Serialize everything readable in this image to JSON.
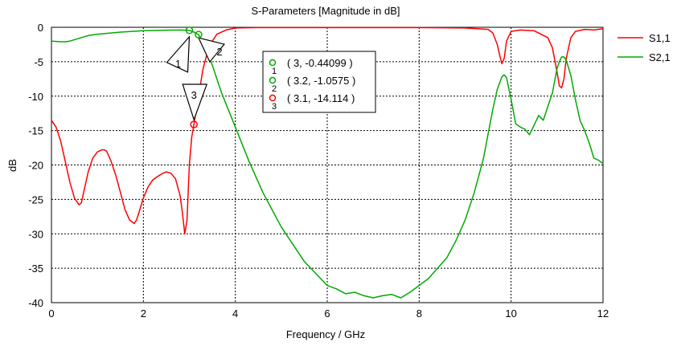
{
  "chart_data": {
    "type": "line",
    "title": "S-Parameters [Magnitude in dB]",
    "xlabel": "Frequency / GHz",
    "ylabel": "dB",
    "xlim": [
      0,
      12
    ],
    "ylim": [
      -40,
      0
    ],
    "xticks": [
      "0",
      "2",
      "4",
      "6",
      "8",
      "10",
      "12"
    ],
    "yticks": [
      "0",
      "-5",
      "-10",
      "-15",
      "-20",
      "-25",
      "-30",
      "-35",
      "-40"
    ],
    "grid": true,
    "legend_position": "right-top",
    "series": [
      {
        "name": "S1,1",
        "color": "#ff0000",
        "x": [
          0,
          0.1,
          0.2,
          0.3,
          0.4,
          0.5,
          0.6,
          0.65,
          0.7,
          0.8,
          0.9,
          1.0,
          1.1,
          1.15,
          1.2,
          1.3,
          1.4,
          1.5,
          1.6,
          1.7,
          1.8,
          1.85,
          1.9,
          2.0,
          2.1,
          2.2,
          2.3,
          2.4,
          2.5,
          2.6,
          2.7,
          2.8,
          2.85,
          2.9,
          2.95,
          3.0,
          3.05,
          3.1,
          3.2,
          3.3,
          3.4,
          3.5,
          3.6,
          3.8,
          4.0,
          4.5,
          5.0,
          6.0,
          7.0,
          8.0,
          9.0,
          9.5,
          9.6,
          9.7,
          9.75,
          9.8,
          9.85,
          9.9,
          10.0,
          10.2,
          10.5,
          10.8,
          10.9,
          11.0,
          11.05,
          11.1,
          11.15,
          11.2,
          11.3,
          11.4,
          11.6,
          11.8,
          12.0
        ],
        "y": [
          -13.5,
          -14.5,
          -16.5,
          -19.5,
          -22.5,
          -24.8,
          -25.8,
          -25.5,
          -24.0,
          -21.0,
          -19.0,
          -18.1,
          -17.8,
          -17.8,
          -18.0,
          -19.5,
          -21.5,
          -24.0,
          -26.5,
          -28.0,
          -28.5,
          -28.0,
          -27.0,
          -24.8,
          -23.2,
          -22.2,
          -21.7,
          -21.3,
          -21.0,
          -21.2,
          -22.0,
          -24.5,
          -27.0,
          -30.0,
          -28.0,
          -20.0,
          -16.0,
          -14.11,
          -10.0,
          -6.0,
          -3.5,
          -2.0,
          -1.0,
          -0.4,
          -0.1,
          -0.05,
          -0.05,
          -0.05,
          -0.05,
          -0.05,
          -0.1,
          -0.3,
          -0.8,
          -2.5,
          -4.0,
          -5.3,
          -4.5,
          -2.0,
          -0.6,
          -0.4,
          -0.5,
          -1.5,
          -3.0,
          -6.5,
          -8.5,
          -8.8,
          -7.5,
          -4.5,
          -1.5,
          -0.6,
          -0.3,
          -0.4,
          -0.2
        ]
      },
      {
        "name": "S2,1",
        "color": "#00aa00",
        "x": [
          0,
          0.2,
          0.3,
          0.4,
          0.6,
          0.8,
          1.0,
          1.5,
          2.0,
          2.5,
          2.8,
          3.0,
          3.1,
          3.2,
          3.3,
          3.5,
          3.7,
          4.0,
          4.3,
          4.6,
          5.0,
          5.5,
          6.0,
          6.2,
          6.4,
          6.6,
          6.8,
          7.0,
          7.2,
          7.4,
          7.6,
          7.8,
          8.0,
          8.2,
          8.4,
          8.6,
          8.8,
          9.0,
          9.2,
          9.4,
          9.6,
          9.7,
          9.8,
          9.85,
          9.9,
          10.0,
          10.1,
          10.2,
          10.3,
          10.4,
          10.5,
          10.6,
          10.7,
          10.8,
          10.9,
          11.0,
          11.05,
          11.1,
          11.15,
          11.2,
          11.3,
          11.4,
          11.5,
          11.6,
          11.7,
          11.8,
          11.9,
          12.0
        ],
        "y": [
          -2.0,
          -2.1,
          -2.1,
          -2.0,
          -1.6,
          -1.2,
          -1.0,
          -0.7,
          -0.5,
          -0.42,
          -0.4,
          -0.44,
          -0.7,
          -1.06,
          -2.3,
          -5.5,
          -9.5,
          -14.5,
          -19.5,
          -24.0,
          -29.0,
          -34.0,
          -37.5,
          -38.0,
          -38.7,
          -38.5,
          -39.0,
          -39.3,
          -39.0,
          -38.8,
          -39.3,
          -38.5,
          -37.5,
          -36.5,
          -35.0,
          -33.5,
          -31.0,
          -28.0,
          -24.0,
          -19.0,
          -12.0,
          -9.0,
          -7.2,
          -6.9,
          -7.3,
          -10.5,
          -14.0,
          -14.5,
          -14.8,
          -15.6,
          -14.2,
          -12.8,
          -13.5,
          -11.5,
          -9.5,
          -6.0,
          -5.0,
          -4.3,
          -4.3,
          -4.8,
          -7.0,
          -10.5,
          -13.5,
          -15.0,
          -16.8,
          -19.0,
          -19.3,
          -19.8
        ]
      }
    ],
    "markers": [
      {
        "id": "1",
        "x": 3,
        "y": -0.44099,
        "series": "S2,1",
        "label": "( 3, -0.44099 )",
        "color": "#00aa00"
      },
      {
        "id": "2",
        "x": 3.2,
        "y": -1.0575,
        "series": "S2,1",
        "label": "( 3.2, -1.0575 )",
        "color": "#00aa00"
      },
      {
        "id": "3",
        "x": 3.1,
        "y": -14.114,
        "series": "S1,1",
        "label": "( 3.1, -14.114 )",
        "color": "#ff0000"
      }
    ]
  }
}
